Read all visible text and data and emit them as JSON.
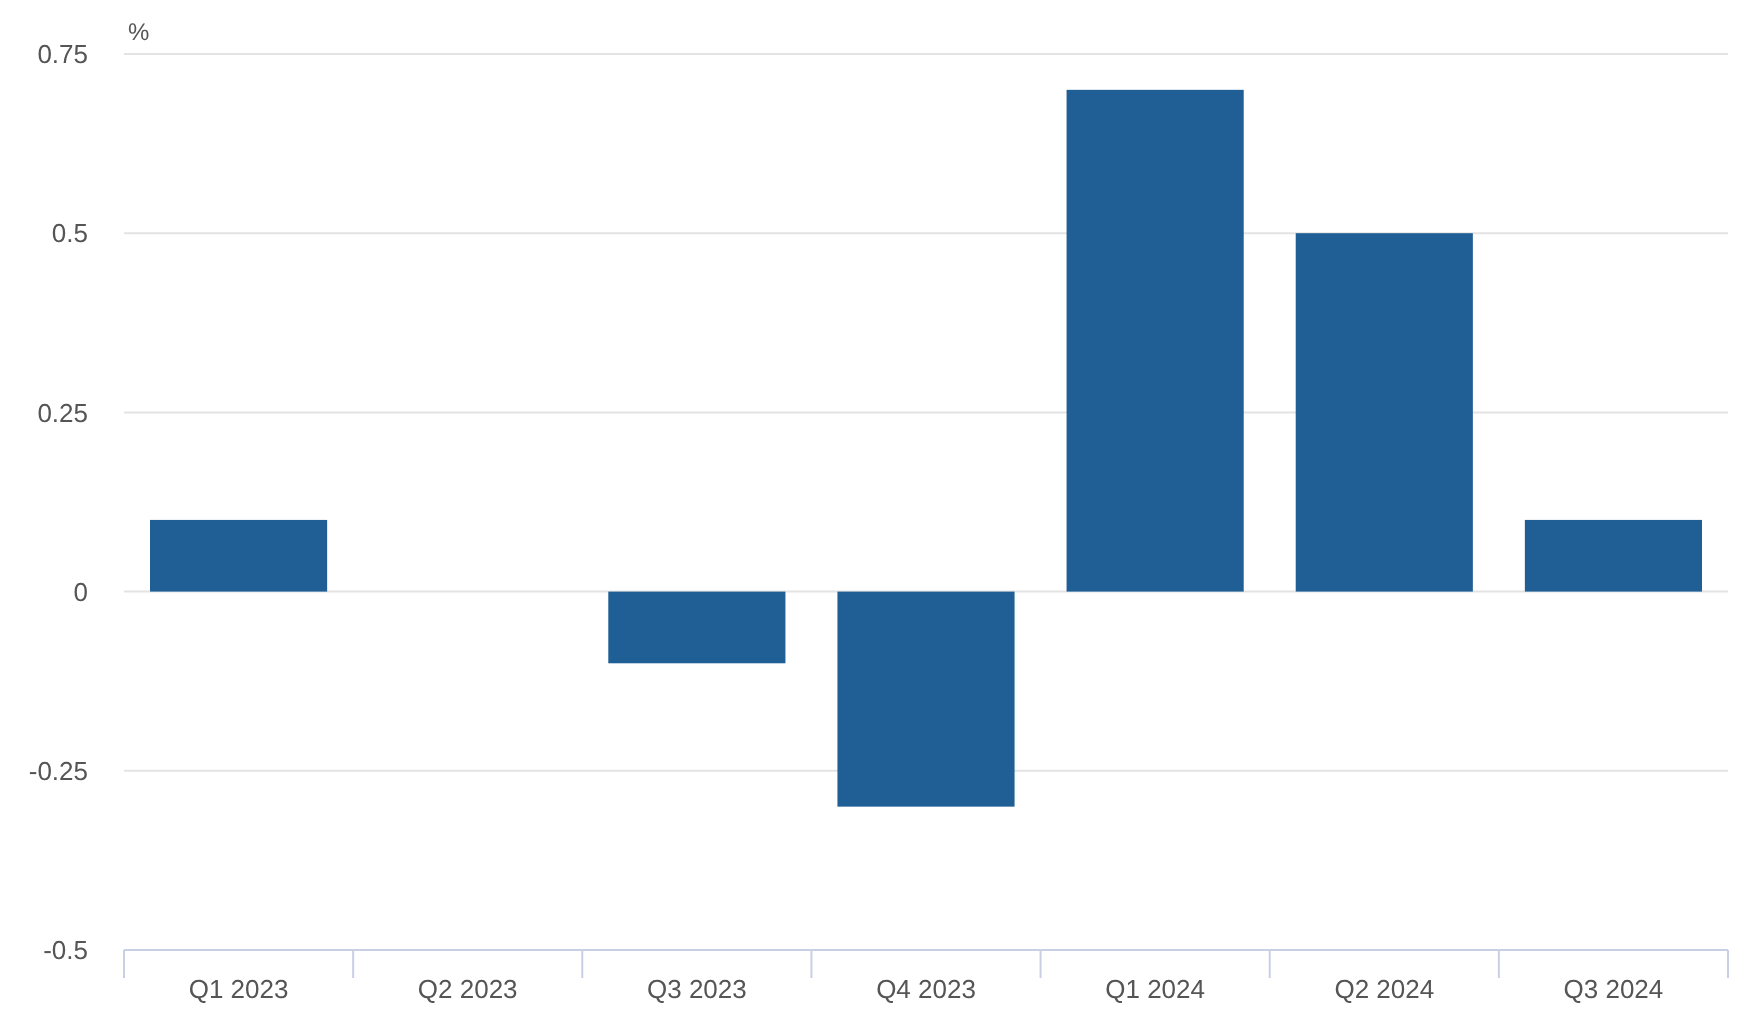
{
  "chart_data": {
    "type": "bar",
    "ylabel": "%",
    "categories": [
      "Q1 2023",
      "Q2 2023",
      "Q3 2023",
      "Q4 2023",
      "Q1 2024",
      "Q2 2024",
      "Q3 2024"
    ],
    "values": [
      0.1,
      0,
      -0.1,
      -0.3,
      0.7,
      0.5,
      0.1
    ],
    "color": "#1f5f96",
    "ylim": [
      -0.5,
      0.75
    ],
    "yticks": [
      -0.5,
      -0.25,
      0,
      0.25,
      0.5,
      0.75
    ],
    "grid": "y"
  }
}
